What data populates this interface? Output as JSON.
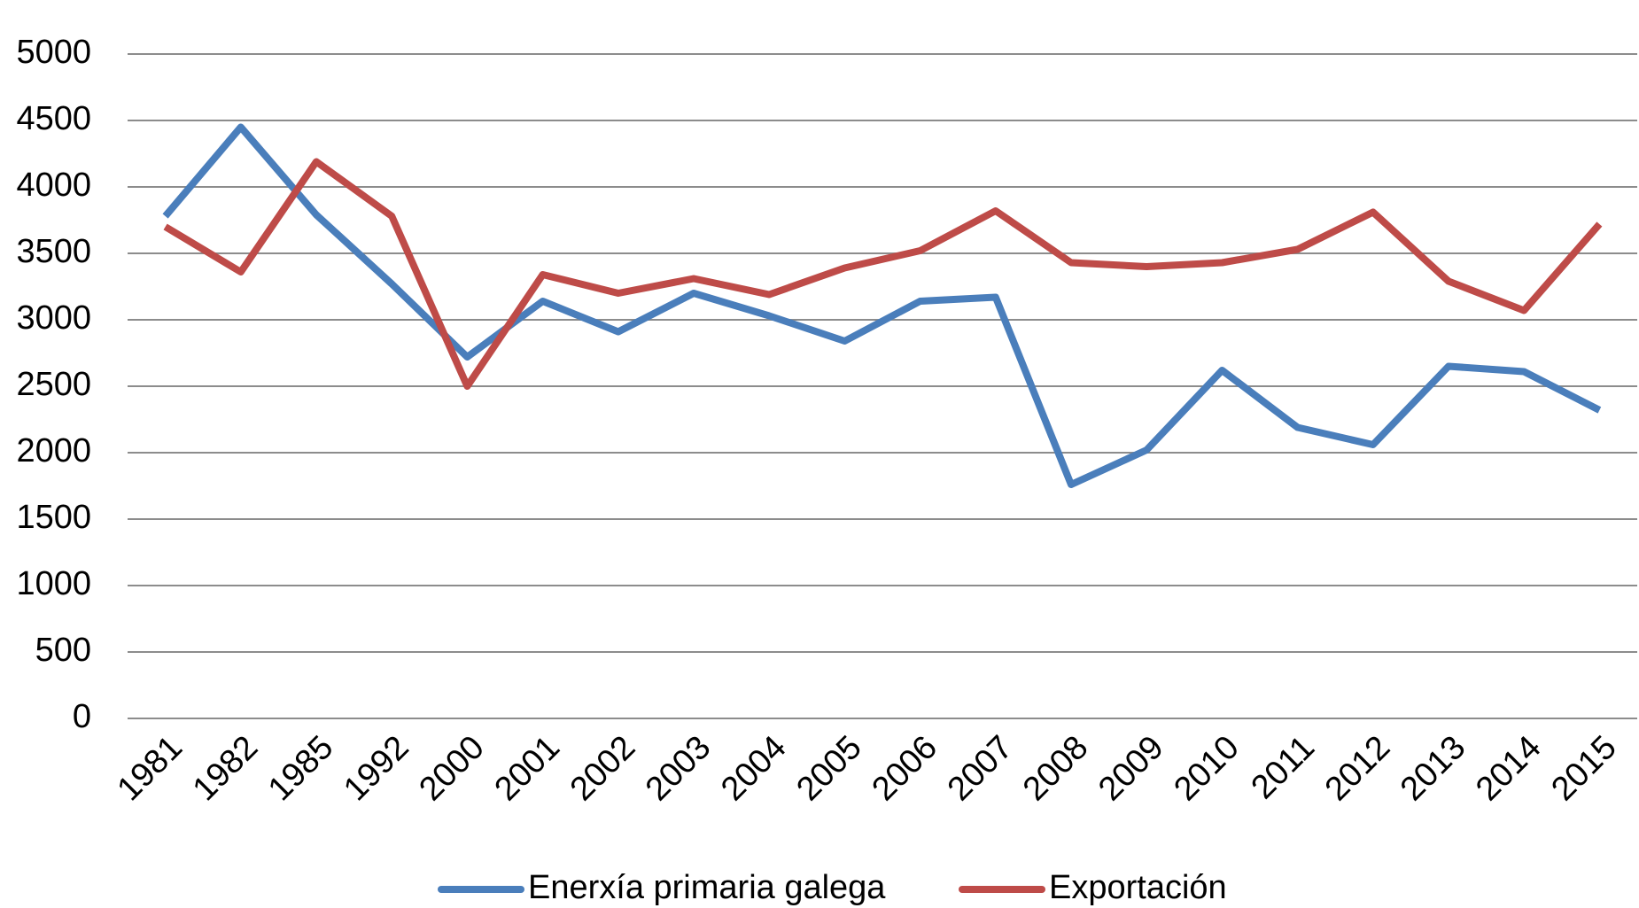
{
  "chart_data": {
    "type": "line",
    "categories": [
      "1981",
      "1982",
      "1985",
      "1992",
      "2000",
      "2001",
      "2002",
      "2003",
      "2004",
      "2005",
      "2006",
      "2007",
      "2008",
      "2009",
      "2010",
      "2011",
      "2012",
      "2013",
      "2014",
      "2015"
    ],
    "series": [
      {
        "name": "Enerxía primaria galega",
        "color": "#4a7ebb",
        "values": [
          3780,
          4450,
          3790,
          3270,
          2720,
          3140,
          2910,
          3200,
          3030,
          2840,
          3140,
          3170,
          1760,
          2020,
          2620,
          2190,
          2060,
          2650,
          2610,
          2320
        ]
      },
      {
        "name": "Exportación",
        "color": "#be4b48",
        "values": [
          3700,
          3360,
          4190,
          3780,
          2500,
          3340,
          3200,
          3310,
          3190,
          3390,
          3520,
          3820,
          3430,
          3400,
          3430,
          3530,
          3810,
          3290,
          3070,
          3720
        ]
      }
    ],
    "ylim": [
      0,
      5000
    ],
    "yticks": [
      0,
      500,
      1000,
      1500,
      2000,
      2500,
      3000,
      3500,
      4000,
      4500,
      5000
    ],
    "grid": true,
    "legend": "bottom"
  }
}
